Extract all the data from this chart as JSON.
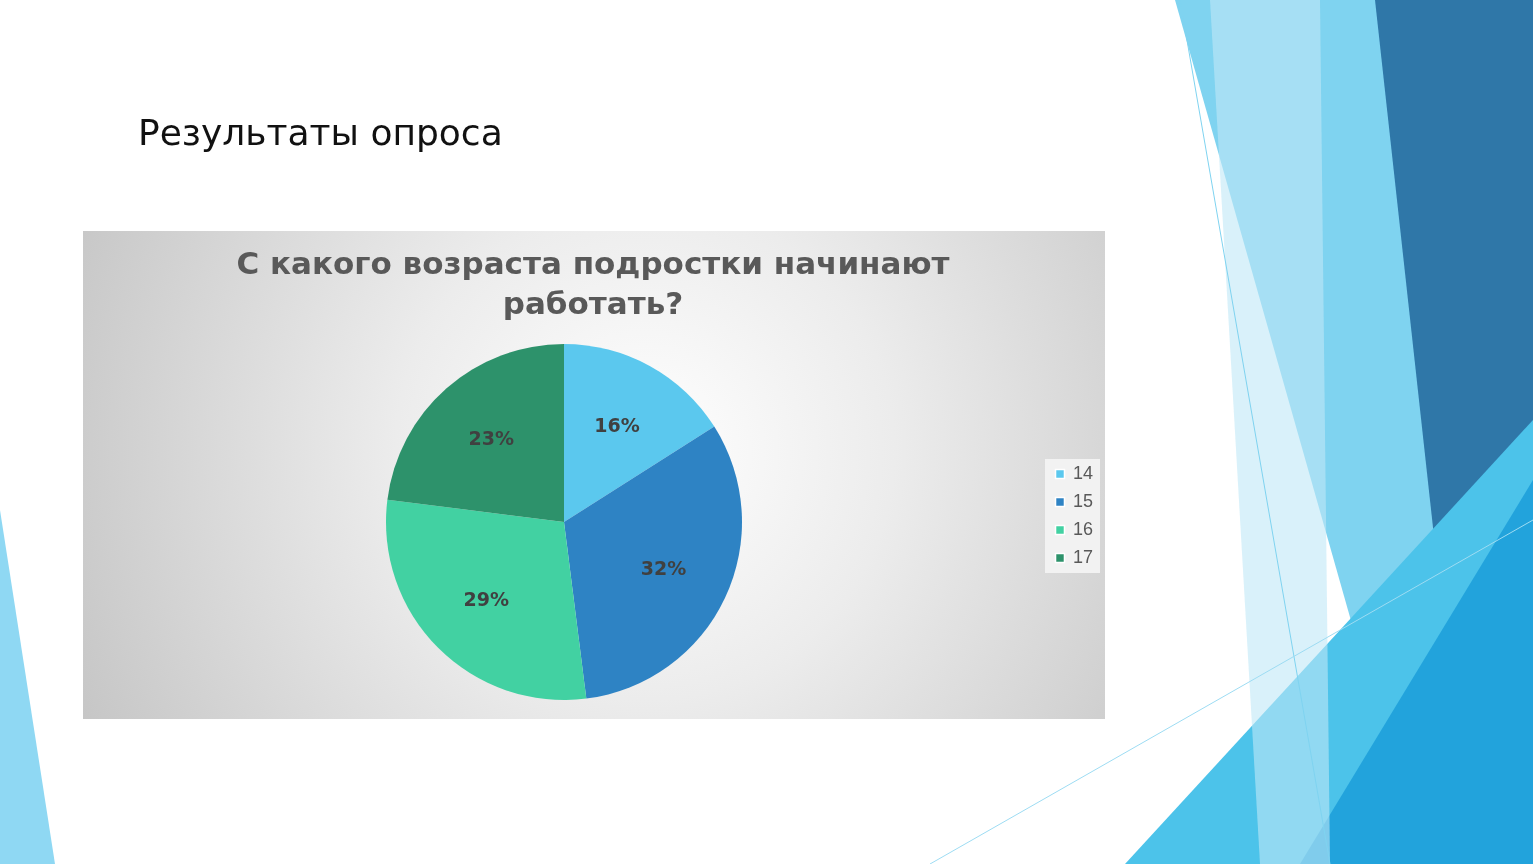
{
  "chart_data": {
    "type": "pie",
    "title": "Результаты опроса",
    "subtitle": "С какого возраста подростки начинают работать?",
    "categories": [
      "14",
      "15",
      "16",
      "17"
    ],
    "values": [
      16,
      32,
      29,
      23
    ],
    "colors": [
      "#5bc8ee",
      "#2e83c4",
      "#42d1a2",
      "#2d926b"
    ],
    "value_labels": [
      "16%",
      "32%",
      "29%",
      "23%"
    ],
    "legend": "right"
  }
}
